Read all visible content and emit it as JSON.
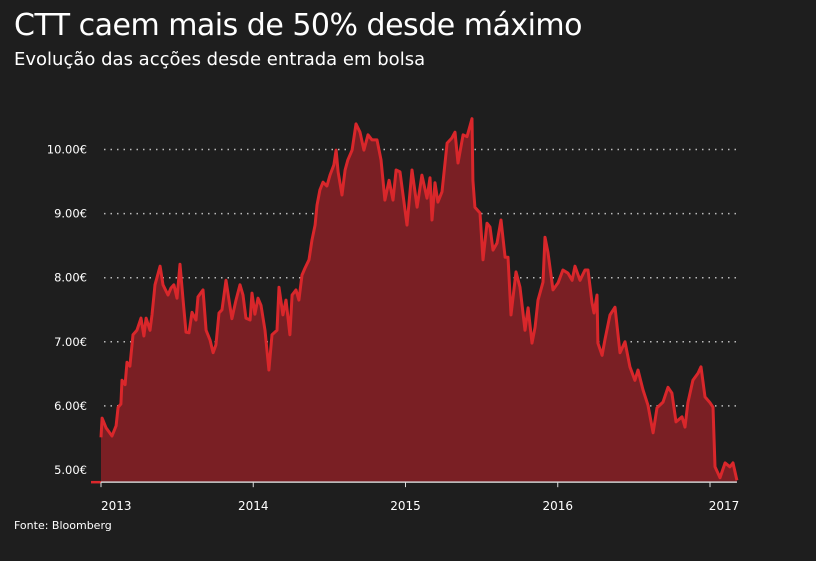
{
  "header": {
    "title": "CTT caem mais de 50% desde máximo",
    "subtitle": "Evolução das acções desde entrada em bolsa"
  },
  "source": "Fonte: Bloomberg",
  "colors": {
    "background": "#1e1e1e",
    "line": "#d9272b",
    "area": "#7a1f24",
    "grid": "#bbbbbb"
  },
  "chart_data": {
    "type": "area",
    "title": "CTT caem mais de 50% desde máximo",
    "subtitle": "Evolução das acções desde entrada em bolsa",
    "xlabel": "",
    "ylabel": "",
    "xlim": [
      2012.99,
      2017.18
    ],
    "ylim": [
      4.81,
      10.6
    ],
    "grid": true,
    "yticks": [
      {
        "value": 5,
        "label": "5.00€"
      },
      {
        "value": 6,
        "label": "6.00€"
      },
      {
        "value": 7,
        "label": "7.00€"
      },
      {
        "value": 8,
        "label": "8.00€"
      },
      {
        "value": 9,
        "label": "9.00€"
      },
      {
        "value": 10,
        "label": "10.00€"
      }
    ],
    "xticks": [
      {
        "value": 2013,
        "label": "2013"
      },
      {
        "value": 2014,
        "label": "2014"
      },
      {
        "value": 2015,
        "label": "2015"
      },
      {
        "value": 2016,
        "label": "2016"
      },
      {
        "value": 2017,
        "label": "2017"
      }
    ],
    "series": [
      {
        "name": "CTT",
        "points": [
          [
            2013.0,
            5.51
          ],
          [
            2013.007,
            5.81
          ],
          [
            2013.033,
            5.66
          ],
          [
            2013.072,
            5.53
          ],
          [
            2013.099,
            5.69
          ],
          [
            2013.112,
            5.98
          ],
          [
            2013.131,
            6.03
          ],
          [
            2013.138,
            6.4
          ],
          [
            2013.158,
            6.33
          ],
          [
            2013.171,
            6.68
          ],
          [
            2013.19,
            6.62
          ],
          [
            2013.21,
            7.11
          ],
          [
            2013.236,
            7.18
          ],
          [
            2013.263,
            7.37
          ],
          [
            2013.282,
            7.09
          ],
          [
            2013.296,
            7.37
          ],
          [
            2013.322,
            7.18
          ],
          [
            2013.335,
            7.42
          ],
          [
            2013.355,
            7.89
          ],
          [
            2013.388,
            8.18
          ],
          [
            2013.407,
            7.89
          ],
          [
            2013.44,
            7.73
          ],
          [
            2013.46,
            7.84
          ],
          [
            2013.479,
            7.89
          ],
          [
            2013.499,
            7.68
          ],
          [
            2013.519,
            8.21
          ],
          [
            2013.539,
            7.65
          ],
          [
            2013.558,
            7.15
          ],
          [
            2013.578,
            7.14
          ],
          [
            2013.598,
            7.46
          ],
          [
            2013.624,
            7.34
          ],
          [
            2013.637,
            7.7
          ],
          [
            2013.67,
            7.81
          ],
          [
            2013.69,
            7.18
          ],
          [
            2013.716,
            7.03
          ],
          [
            2013.736,
            6.83
          ],
          [
            2013.755,
            6.95
          ],
          [
            2013.775,
            7.45
          ],
          [
            2013.795,
            7.5
          ],
          [
            2013.821,
            7.96
          ],
          [
            2013.841,
            7.65
          ],
          [
            2013.86,
            7.36
          ],
          [
            2013.887,
            7.65
          ],
          [
            2013.913,
            7.89
          ],
          [
            2013.933,
            7.73
          ],
          [
            2013.952,
            7.37
          ],
          [
            2013.979,
            7.34
          ],
          [
            2013.992,
            7.76
          ],
          [
            2014.011,
            7.43
          ],
          [
            2014.031,
            7.68
          ],
          [
            2014.051,
            7.57
          ],
          [
            2014.077,
            7.18
          ],
          [
            2014.103,
            6.56
          ],
          [
            2014.123,
            7.11
          ],
          [
            2014.156,
            7.18
          ],
          [
            2014.169,
            7.85
          ],
          [
            2014.195,
            7.42
          ],
          [
            2014.215,
            7.65
          ],
          [
            2014.241,
            7.11
          ],
          [
            2014.255,
            7.73
          ],
          [
            2014.281,
            7.81
          ],
          [
            2014.3,
            7.65
          ],
          [
            2014.32,
            8.04
          ],
          [
            2014.34,
            8.15
          ],
          [
            2014.366,
            8.28
          ],
          [
            2014.386,
            8.59
          ],
          [
            2014.406,
            8.82
          ],
          [
            2014.419,
            9.13
          ],
          [
            2014.438,
            9.37
          ],
          [
            2014.458,
            9.49
          ],
          [
            2014.484,
            9.43
          ],
          [
            2014.504,
            9.6
          ],
          [
            2014.53,
            9.76
          ],
          [
            2014.544,
            9.99
          ],
          [
            2014.557,
            9.65
          ],
          [
            2014.583,
            9.29
          ],
          [
            2014.603,
            9.68
          ],
          [
            2014.622,
            9.84
          ],
          [
            2014.649,
            9.99
          ],
          [
            2014.675,
            10.4
          ],
          [
            2014.701,
            10.27
          ],
          [
            2014.727,
            9.99
          ],
          [
            2014.754,
            10.23
          ],
          [
            2014.78,
            10.15
          ],
          [
            2014.813,
            10.15
          ],
          [
            2014.839,
            9.84
          ],
          [
            2014.865,
            9.21
          ],
          [
            2014.892,
            9.52
          ],
          [
            2014.918,
            9.21
          ],
          [
            2014.938,
            9.68
          ],
          [
            2014.964,
            9.65
          ],
          [
            2015.01,
            8.82
          ],
          [
            2015.043,
            9.68
          ],
          [
            2015.076,
            9.1
          ],
          [
            2015.108,
            9.6
          ],
          [
            2015.141,
            9.24
          ],
          [
            2015.161,
            9.56
          ],
          [
            2015.174,
            8.9
          ],
          [
            2015.194,
            9.48
          ],
          [
            2015.213,
            9.18
          ],
          [
            2015.24,
            9.34
          ],
          [
            2015.273,
            10.1
          ],
          [
            2015.305,
            10.18
          ],
          [
            2015.325,
            10.27
          ],
          [
            2015.345,
            9.79
          ],
          [
            2015.378,
            10.23
          ],
          [
            2015.404,
            10.2
          ],
          [
            2015.437,
            10.48
          ],
          [
            2015.443,
            9.52
          ],
          [
            2015.456,
            9.1
          ],
          [
            2015.489,
            9.01
          ],
          [
            2015.509,
            8.28
          ],
          [
            2015.535,
            8.85
          ],
          [
            2015.555,
            8.79
          ],
          [
            2015.575,
            8.43
          ],
          [
            2015.601,
            8.54
          ],
          [
            2015.627,
            8.9
          ],
          [
            2015.654,
            8.32
          ],
          [
            2015.673,
            8.32
          ],
          [
            2015.693,
            7.42
          ],
          [
            2015.726,
            8.09
          ],
          [
            2015.752,
            7.85
          ],
          [
            2015.785,
            7.18
          ],
          [
            2015.805,
            7.53
          ],
          [
            2015.831,
            6.98
          ],
          [
            2015.851,
            7.23
          ],
          [
            2015.87,
            7.65
          ],
          [
            2015.903,
            7.93
          ],
          [
            2015.916,
            8.63
          ],
          [
            2015.936,
            8.39
          ],
          [
            2015.969,
            7.81
          ],
          [
            2016.002,
            7.92
          ],
          [
            2016.034,
            8.12
          ],
          [
            2016.067,
            8.07
          ],
          [
            2016.094,
            7.96
          ],
          [
            2016.113,
            8.18
          ],
          [
            2016.146,
            7.96
          ],
          [
            2016.179,
            8.12
          ],
          [
            2016.199,
            8.12
          ],
          [
            2016.225,
            7.61
          ],
          [
            2016.238,
            7.45
          ],
          [
            2016.258,
            7.73
          ],
          [
            2016.264,
            6.98
          ],
          [
            2016.291,
            6.79
          ],
          [
            2016.31,
            7.03
          ],
          [
            2016.343,
            7.42
          ],
          [
            2016.376,
            7.54
          ],
          [
            2016.409,
            6.83
          ],
          [
            2016.442,
            7.0
          ],
          [
            2016.474,
            6.61
          ],
          [
            2016.507,
            6.4
          ],
          [
            2016.527,
            6.56
          ],
          [
            2016.56,
            6.25
          ],
          [
            2016.593,
            6.01
          ],
          [
            2016.626,
            5.58
          ],
          [
            2016.652,
            5.97
          ],
          [
            2016.691,
            6.06
          ],
          [
            2016.724,
            6.29
          ],
          [
            2016.75,
            6.2
          ],
          [
            2016.777,
            5.75
          ],
          [
            2016.816,
            5.83
          ],
          [
            2016.836,
            5.67
          ],
          [
            2016.855,
            6.05
          ],
          [
            2016.888,
            6.4
          ],
          [
            2016.921,
            6.51
          ],
          [
            2016.941,
            6.61
          ],
          [
            2016.967,
            6.14
          ],
          [
            2017.0,
            6.05
          ],
          [
            2017.02,
            5.98
          ],
          [
            2017.033,
            5.05
          ],
          [
            2017.066,
            4.88
          ],
          [
            2017.099,
            5.11
          ],
          [
            2017.131,
            5.05
          ],
          [
            2017.151,
            5.11
          ],
          [
            2017.177,
            4.84
          ]
        ]
      }
    ]
  }
}
